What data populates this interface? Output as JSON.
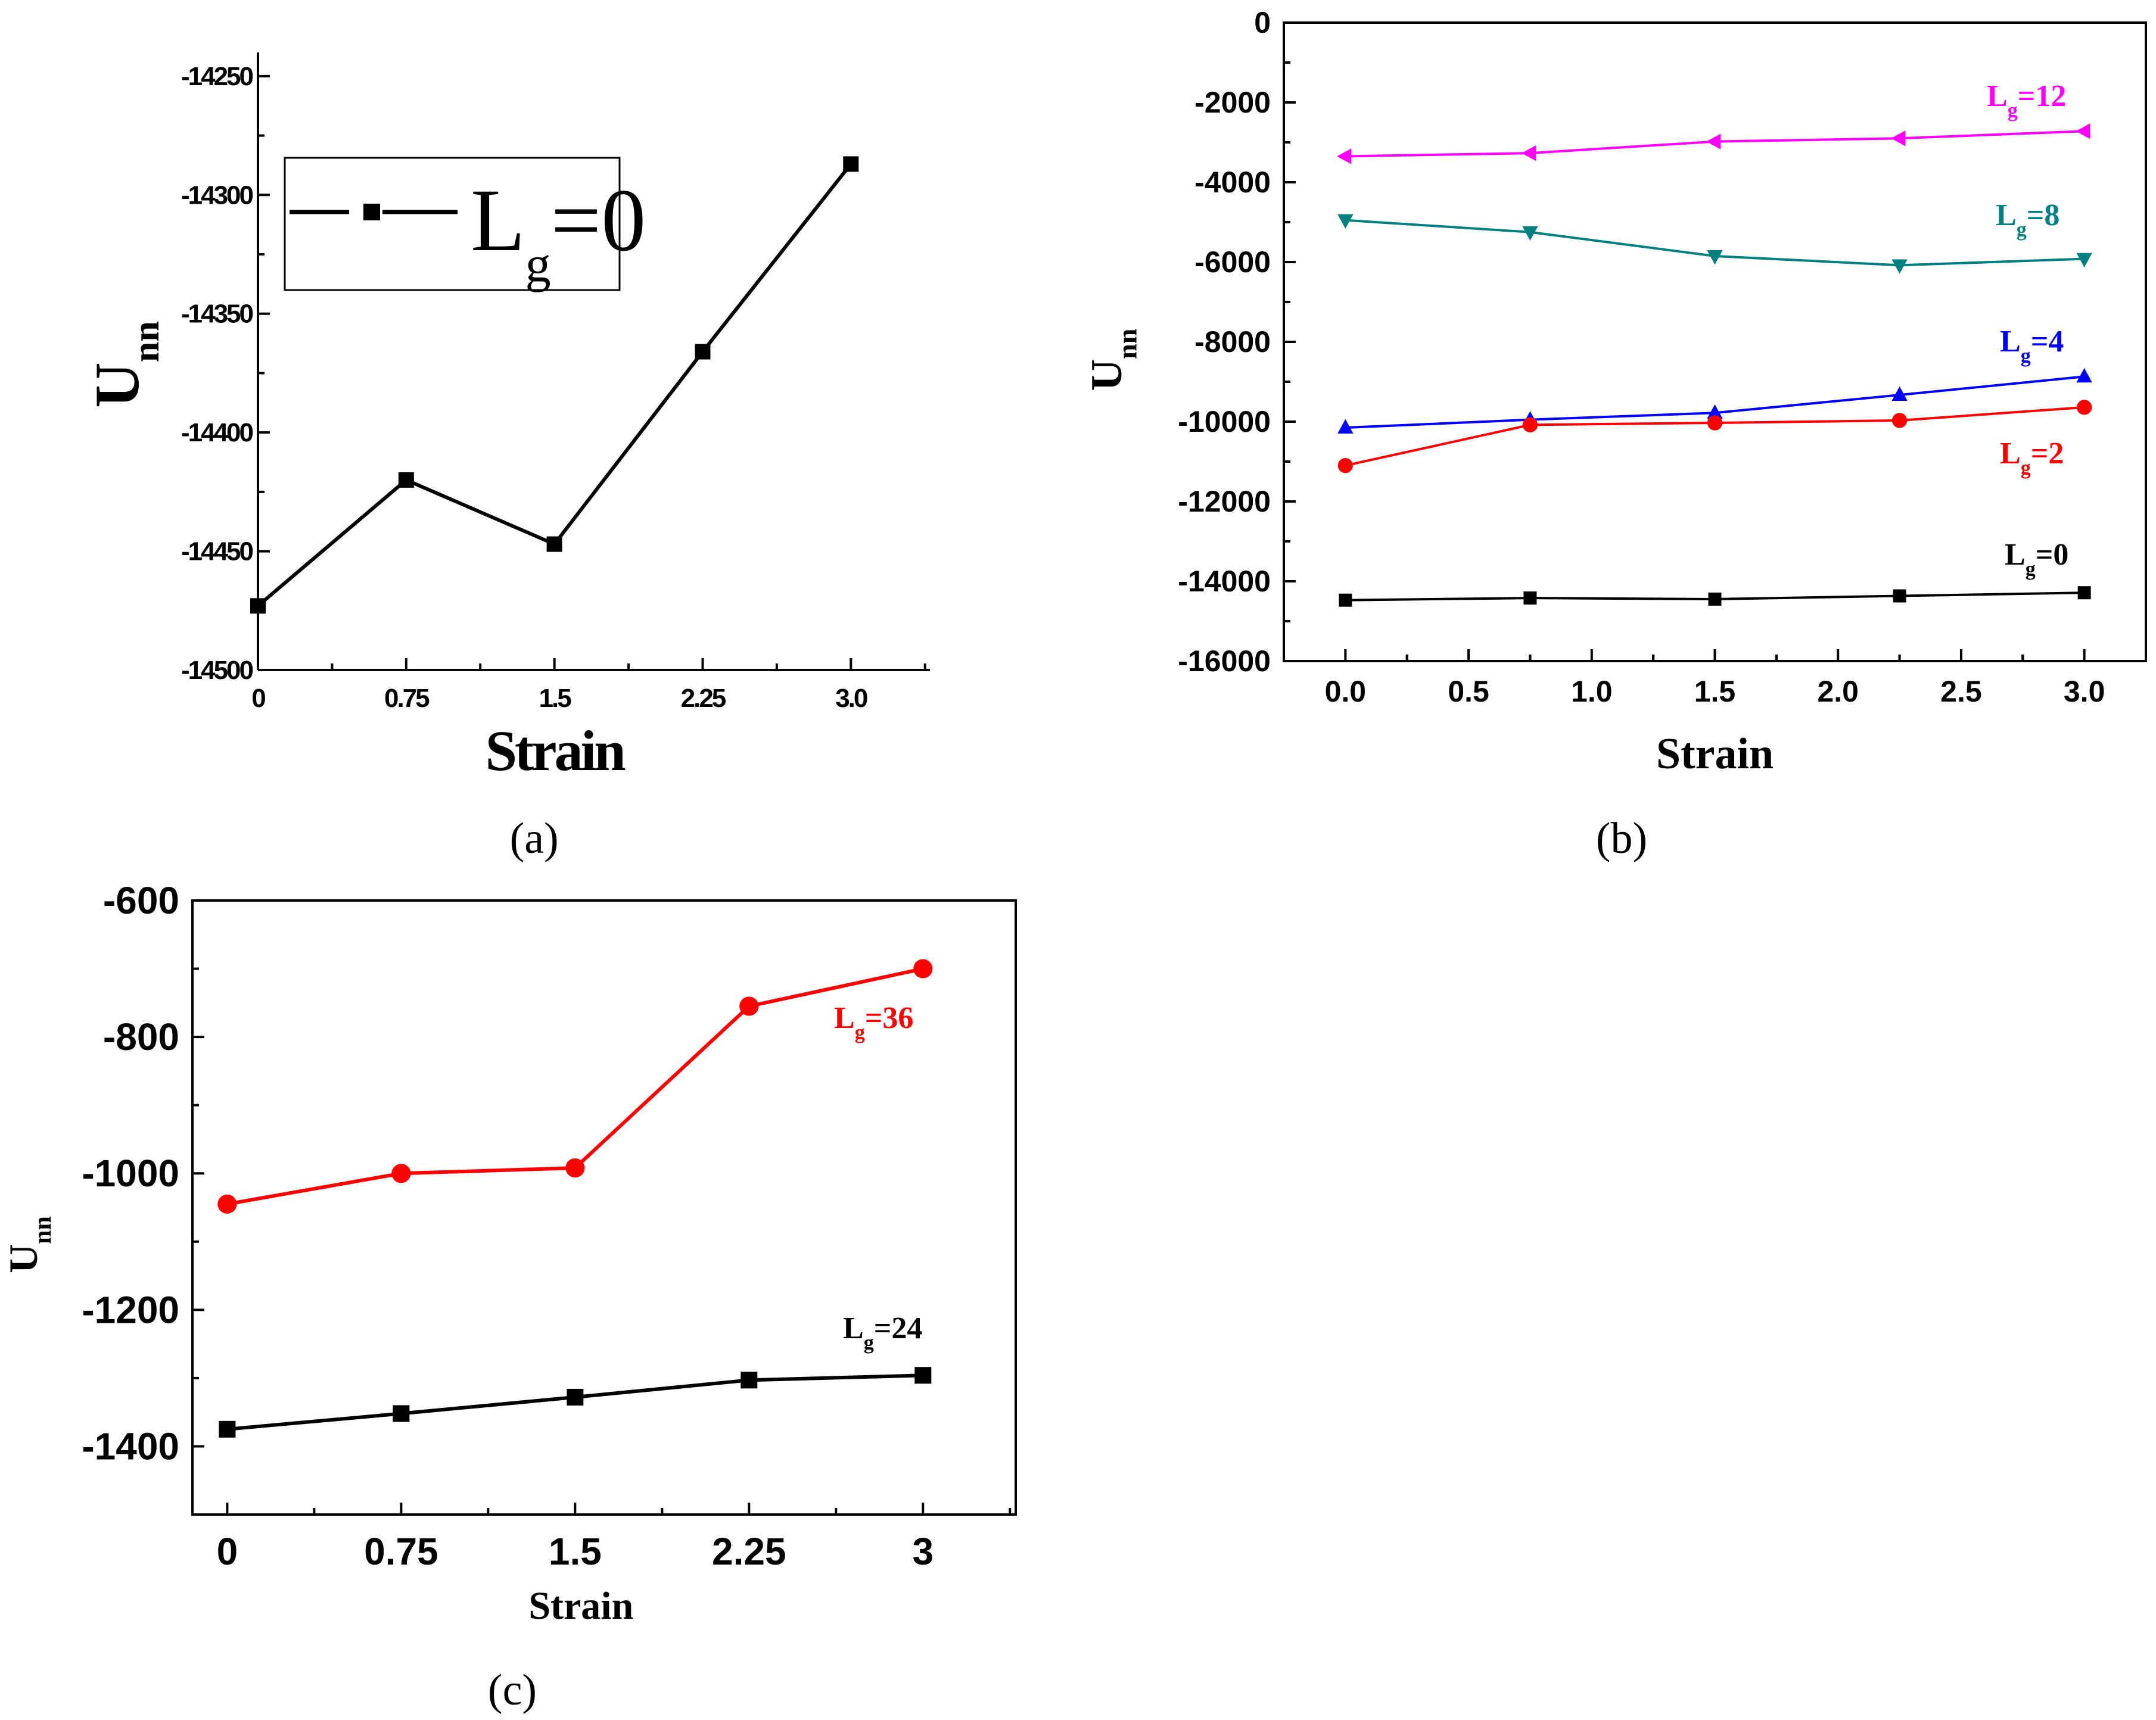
{
  "chart_data": [
    {
      "panel": "a",
      "type": "line",
      "caption": "(a)",
      "xlabel": "Strain",
      "ylabel": "U",
      "ylabel_sub": "nn",
      "x_ticks": [
        "0",
        "0.75",
        "1.5",
        "2.25",
        "3.0"
      ],
      "y_ticks": [
        "-14250",
        "-14300",
        "-14350",
        "-14400",
        "-14450",
        "-14500"
      ],
      "xlim": [
        0,
        3.4
      ],
      "ylim": [
        -14500,
        -14240
      ],
      "grid": false,
      "legend": {
        "placement": "top-left",
        "main": "L",
        "sub": "g",
        "rest": "=0"
      },
      "series": [
        {
          "name": "Lg=0",
          "color": "#000000",
          "marker": "square",
          "x": [
            0,
            0.75,
            1.5,
            2.25,
            3.0
          ],
          "y": [
            -14473,
            -14420,
            -14447,
            -14366,
            -14287
          ]
        }
      ]
    },
    {
      "panel": "b",
      "type": "line",
      "caption": "(b)",
      "xlabel": "Strain",
      "ylabel": "U",
      "ylabel_sub": "nn",
      "x_ticks": [
        "0.0",
        "0.5",
        "1.0",
        "1.5",
        "2.0",
        "2.5",
        "3.0"
      ],
      "y_ticks": [
        "0",
        "-2000",
        "-4000",
        "-6000",
        "-8000",
        "-10000",
        "-12000",
        "-14000",
        "-16000"
      ],
      "xlim": [
        -0.25,
        3.25
      ],
      "ylim": [
        -16000,
        0
      ],
      "grid": false,
      "series": [
        {
          "name": "Lg=12",
          "label_main": "L",
          "label_sub": "g",
          "label_rest": "=12",
          "color": "#ff00ff",
          "marker": "triangle-left",
          "x": [
            0,
            0.75,
            1.5,
            2.25,
            3.0
          ],
          "y": [
            -3350,
            -3270,
            -2980,
            -2900,
            -2720
          ]
        },
        {
          "name": "Lg=8",
          "label_main": "L",
          "label_sub": "g",
          "label_rest": "=8",
          "color": "#008080",
          "marker": "triangle-down",
          "x": [
            0,
            0.75,
            1.5,
            2.25,
            3.0
          ],
          "y": [
            -4950,
            -5250,
            -5850,
            -6080,
            -5920
          ]
        },
        {
          "name": "Lg=4",
          "label_main": "L",
          "label_sub": "g",
          "label_rest": "=4",
          "color": "#0000ff",
          "marker": "triangle-up",
          "x": [
            0,
            0.75,
            1.5,
            2.25,
            3.0
          ],
          "y": [
            -10150,
            -9950,
            -9780,
            -9330,
            -8870
          ]
        },
        {
          "name": "Lg=2",
          "label_main": "L",
          "label_sub": "g",
          "label_rest": "=2",
          "color": "#ff0000",
          "marker": "circle",
          "x": [
            0,
            0.75,
            1.5,
            2.25,
            3.0
          ],
          "y": [
            -11100,
            -10080,
            -10030,
            -9970,
            -9640
          ]
        },
        {
          "name": "Lg=0",
          "label_main": "L",
          "label_sub": "g",
          "label_rest": "=0",
          "color": "#000000",
          "marker": "square",
          "x": [
            0,
            0.75,
            1.5,
            2.25,
            3.0
          ],
          "y": [
            -14473,
            -14420,
            -14447,
            -14366,
            -14287
          ]
        }
      ]
    },
    {
      "panel": "c",
      "type": "line",
      "caption": "(c)",
      "xlabel": "Strain",
      "ylabel": "U",
      "ylabel_sub": "nn",
      "x_ticks": [
        "0",
        "0.75",
        "1.5",
        "2.25",
        "3"
      ],
      "y_ticks": [
        "-600",
        "-800",
        "-1000",
        "-1200",
        "-1400"
      ],
      "xlim": [
        -0.15,
        3.4
      ],
      "ylim": [
        -1500,
        -600
      ],
      "grid": false,
      "series": [
        {
          "name": "Lg=36",
          "label_main": "L",
          "label_sub": "g",
          "label_rest": "=36",
          "color": "#ff0000",
          "marker": "circle",
          "x": [
            0,
            0.75,
            1.5,
            2.25,
            3.0
          ],
          "y": [
            -1045,
            -1000,
            -992,
            -755,
            -700
          ]
        },
        {
          "name": "Lg=24",
          "label_main": "L",
          "label_sub": "g",
          "label_rest": "=24",
          "color": "#000000",
          "marker": "square",
          "x": [
            0,
            0.75,
            1.5,
            2.25,
            3.0
          ],
          "y": [
            -1375,
            -1352,
            -1328,
            -1303,
            -1296
          ]
        }
      ]
    }
  ]
}
